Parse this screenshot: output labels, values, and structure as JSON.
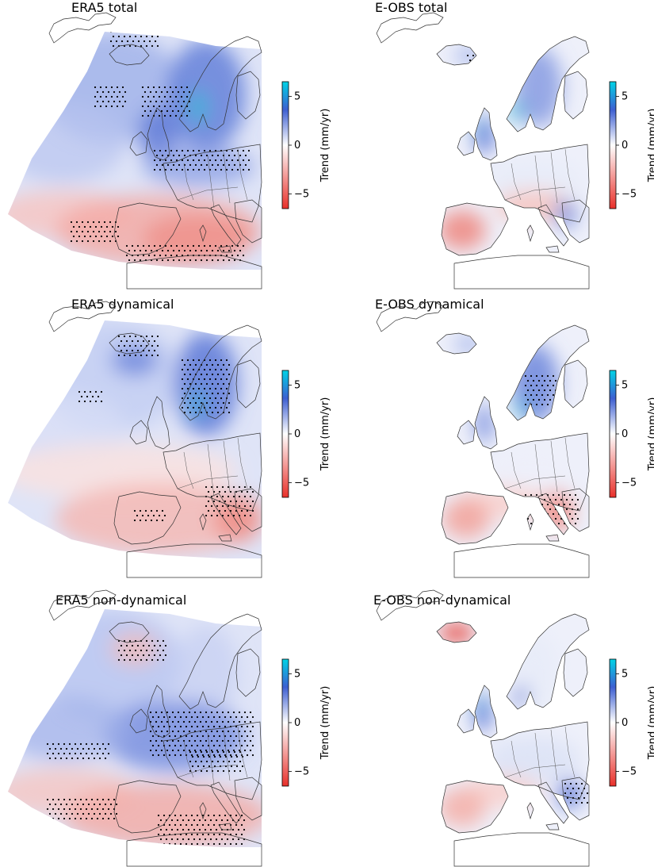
{
  "panels": [
    {
      "id": "era5-total",
      "title": "ERA5 total",
      "type": "era5",
      "pattern": "total"
    },
    {
      "id": "eobs-total",
      "title": "E-OBS total",
      "type": "eobs",
      "pattern": "total"
    },
    {
      "id": "era5-dynamical",
      "title": "ERA5 dynamical",
      "type": "era5",
      "pattern": "dyn"
    },
    {
      "id": "eobs-dynamical",
      "title": "E-OBS dynamical",
      "type": "eobs",
      "pattern": "dyn"
    },
    {
      "id": "era5-nondynamical",
      "title": "ERA5 non-dynamical",
      "type": "era5",
      "pattern": "nondyn"
    },
    {
      "id": "eobs-nondynamical",
      "title": "E-OBS non-dynamical",
      "type": "eobs",
      "pattern": "nondyn"
    }
  ],
  "colorbar": {
    "label": "Trend (mm/yr)",
    "ticks": [
      "5",
      "0",
      "−5"
    ],
    "tick_values": [
      5,
      0,
      -5
    ],
    "range": [
      -6.5,
      6.5
    ],
    "colors": {
      "positive_max": "#00d3e6",
      "positive": "#3d5fd1",
      "zero": "#ffffff",
      "negative": "#e8302a"
    }
  }
}
